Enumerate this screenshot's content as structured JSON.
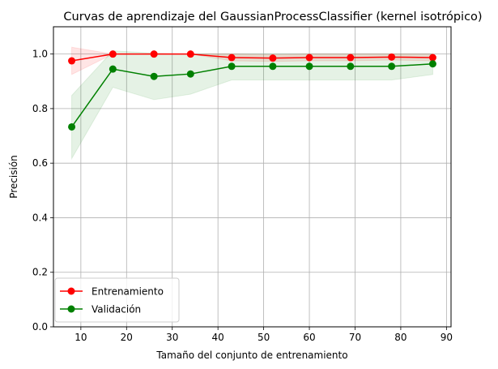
{
  "chart_data": {
    "type": "line",
    "title": "Curvas de aprendizaje del GaussianProcessClassifier (kernel isotrópico)",
    "xlabel": "Tamaño del conjunto de entrenamiento",
    "ylabel": "Precisión",
    "xlim": [
      4,
      91
    ],
    "ylim": [
      0.0,
      1.1
    ],
    "x_ticks": [
      10,
      20,
      30,
      40,
      50,
      60,
      70,
      80,
      90
    ],
    "y_ticks": [
      0.0,
      0.2,
      0.4,
      0.6,
      0.8,
      1.0
    ],
    "x_tick_labels": [
      "10",
      "20",
      "30",
      "40",
      "50",
      "60",
      "70",
      "80",
      "90"
    ],
    "y_tick_labels": [
      "0.0",
      "0.2",
      "0.4",
      "0.6",
      "0.8",
      "1.0"
    ],
    "grid": true,
    "legend_position": "lower-left",
    "x": [
      8,
      17,
      26,
      34,
      43,
      52,
      60,
      69,
      78,
      87
    ],
    "series": [
      {
        "name": "Entrenamiento",
        "color": "#ff0000",
        "values": [
          0.975,
          1.0,
          1.0,
          1.0,
          0.987,
          0.985,
          0.987,
          0.987,
          0.989,
          0.987
        ],
        "band_lower": [
          0.925,
          1.0,
          1.0,
          1.0,
          0.975,
          0.973,
          0.975,
          0.975,
          0.978,
          0.975
        ],
        "band_upper": [
          1.025,
          1.0,
          1.0,
          1.0,
          1.0,
          0.997,
          1.0,
          1.0,
          1.0,
          1.0
        ],
        "band_color": "#ff0000"
      },
      {
        "name": "Validación",
        "color": "#008000",
        "values": [
          0.733,
          0.945,
          0.918,
          0.927,
          0.955,
          0.955,
          0.955,
          0.955,
          0.955,
          0.964
        ],
        "band_lower": [
          0.617,
          0.878,
          0.833,
          0.853,
          0.905,
          0.905,
          0.905,
          0.905,
          0.905,
          0.925
        ],
        "band_upper": [
          0.848,
          1.012,
          1.003,
          1.0,
          1.0,
          1.0,
          1.0,
          1.0,
          1.0,
          1.0
        ],
        "band_color": "#008000"
      }
    ]
  }
}
